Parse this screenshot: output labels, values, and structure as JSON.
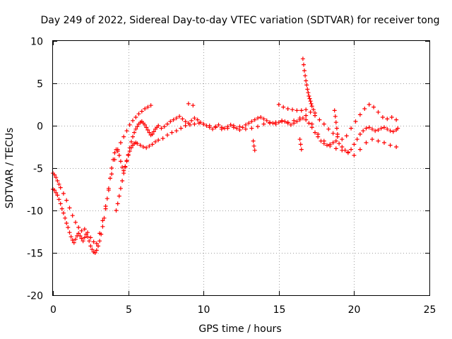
{
  "chart_data": {
    "type": "scatter",
    "title": "Day 249 of 2022, Sidereal Day-to-day VTEC variation (SDTVAR) for receiver tong",
    "xlabel": "GPS time / hours",
    "ylabel": "SDTVAR / TECUs",
    "xlim": [
      0,
      25
    ],
    "ylim": [
      -20,
      10
    ],
    "xticks": [
      0,
      5,
      10,
      15,
      20,
      25
    ],
    "yticks": [
      -20,
      -15,
      -10,
      -5,
      0,
      5,
      10
    ],
    "xtick_labels": [
      "0",
      "5",
      "10",
      "15",
      "20",
      "25"
    ],
    "ytick_labels": [
      "-20",
      "-15",
      "-10",
      "-5",
      "0",
      "5",
      "10"
    ],
    "grid": true,
    "marker": "+",
    "series": [
      {
        "name": "tong",
        "color": "#ff0000",
        "x": [
          0.0,
          0.1,
          0.2,
          0.3,
          0.4,
          0.5,
          0.6,
          0.7,
          0.8,
          0.9,
          1.0,
          1.1,
          1.2,
          1.3,
          1.4,
          1.5,
          1.6,
          1.7,
          1.8,
          1.9,
          2.0,
          2.1,
          2.2,
          2.3,
          2.4,
          2.5,
          2.6,
          2.7,
          2.8,
          2.9,
          3.0,
          3.1,
          3.2,
          3.3,
          3.4,
          3.5,
          3.6,
          3.7,
          3.8,
          3.9,
          4.0,
          4.1,
          4.2,
          4.3,
          4.4,
          4.5,
          4.6,
          4.7,
          4.8,
          4.9,
          5.0,
          5.1,
          5.2,
          5.3,
          5.4,
          5.5,
          5.6,
          5.7,
          5.8,
          5.9,
          6.0,
          6.1,
          6.2,
          6.3,
          6.4,
          6.5,
          6.6,
          6.7,
          6.8,
          6.9,
          7.0,
          7.2,
          7.4,
          7.6,
          7.8,
          8.0,
          8.2,
          8.4,
          8.6,
          8.8,
          9.0,
          9.2,
          9.4,
          9.6,
          9.8,
          10.0,
          10.2,
          10.4,
          10.6,
          10.8,
          11.0,
          11.2,
          11.4,
          11.6,
          11.8,
          12.0,
          12.2,
          12.4,
          12.6,
          12.8,
          13.0,
          13.2,
          13.4,
          13.6,
          13.8,
          14.0,
          14.2,
          14.4,
          14.6,
          14.8,
          15.0,
          15.2,
          15.4,
          15.6,
          15.8,
          16.0,
          16.2,
          16.4,
          16.6,
          16.8,
          17.0,
          17.2,
          17.4,
          17.6,
          17.8,
          18.0,
          18.2,
          18.4,
          18.6,
          18.8,
          19.0,
          19.2,
          19.4,
          19.6,
          19.8,
          20.0,
          20.2,
          20.4,
          20.6,
          20.8,
          21.0,
          21.2,
          21.4,
          21.6,
          21.8,
          22.0,
          22.2,
          22.4,
          22.6,
          22.8,
          22.9,
          0.0,
          0.1,
          0.2,
          0.3,
          0.4,
          0.5,
          0.7,
          0.9,
          1.1,
          1.3,
          1.5,
          1.7,
          1.9,
          2.1,
          2.3,
          2.5,
          2.7,
          2.9,
          3.1,
          3.3,
          3.5,
          3.7,
          3.9,
          4.1,
          4.3,
          4.5,
          4.7,
          4.9,
          5.1,
          5.3,
          5.5,
          5.7,
          5.9,
          6.1,
          6.3,
          6.5,
          4.2,
          4.3,
          4.4,
          4.5,
          4.6,
          4.7,
          4.8,
          4.9,
          5.0,
          5.1,
          5.2,
          5.3,
          5.4,
          5.5,
          5.6,
          5.8,
          6.0,
          6.2,
          6.4,
          6.6,
          6.8,
          7.0,
          7.3,
          7.6,
          7.9,
          8.2,
          8.5,
          8.8,
          9.1,
          9.4,
          9.7,
          10.0,
          10.4,
          10.8,
          11.2,
          11.6,
          12.0,
          12.4,
          12.8,
          13.2,
          13.6,
          14.0,
          14.4,
          14.8,
          15.2,
          15.6,
          16.0,
          16.4,
          16.8,
          17.2,
          17.6,
          18.0,
          18.4,
          18.8,
          19.2,
          19.6,
          20.0,
          20.4,
          20.8,
          21.2,
          21.6,
          22.0,
          22.4,
          22.8,
          15.0,
          15.3,
          15.6,
          15.9,
          16.2,
          16.5,
          16.8,
          17.1,
          17.4,
          17.7,
          18.0,
          18.3,
          18.6,
          18.9,
          19.2,
          19.5,
          19.8,
          20.1,
          20.4,
          20.7,
          21.0,
          21.3,
          21.6,
          21.9,
          22.2,
          22.5,
          22.8,
          16.6,
          16.65,
          16.7,
          16.75,
          16.8,
          16.85,
          16.9,
          16.95,
          17.0,
          17.05,
          17.1,
          17.15,
          17.2,
          17.3,
          17.4,
          18.7,
          18.75,
          18.8,
          18.85,
          18.9,
          16.4,
          16.45,
          16.5,
          13.3,
          13.35,
          13.4,
          9.0,
          9.3
        ],
        "y": [
          -7.5,
          -7.6,
          -7.9,
          -8.2,
          -8.7,
          -9.2,
          -9.8,
          -10.3,
          -10.9,
          -11.5,
          -12.0,
          -12.6,
          -13.1,
          -13.5,
          -13.8,
          -13.4,
          -13.0,
          -12.7,
          -13.0,
          -13.3,
          -13.6,
          -13.2,
          -12.8,
          -13.1,
          -13.6,
          -14.2,
          -14.6,
          -14.9,
          -15.0,
          -14.7,
          -14.2,
          -13.6,
          -12.8,
          -11.9,
          -10.9,
          -9.8,
          -8.6,
          -7.4,
          -6.2,
          -5.0,
          -4.0,
          -3.2,
          -2.8,
          -3.0,
          -3.5,
          -4.2,
          -4.9,
          -5.3,
          -4.9,
          -4.2,
          -3.4,
          -2.6,
          -1.9,
          -1.3,
          -0.8,
          -0.4,
          -0.1,
          0.2,
          0.4,
          0.5,
          0.3,
          0.1,
          -0.2,
          -0.5,
          -0.8,
          -1.1,
          -1.0,
          -0.7,
          -0.4,
          -0.2,
          0.0,
          -0.3,
          -0.1,
          0.2,
          0.5,
          0.7,
          0.9,
          1.1,
          0.8,
          0.5,
          0.3,
          0.6,
          0.9,
          0.7,
          0.4,
          0.2,
          0.0,
          -0.2,
          -0.4,
          -0.1,
          0.1,
          -0.2,
          -0.3,
          -0.1,
          0.1,
          0.0,
          -0.3,
          -0.5,
          -0.2,
          0.1,
          0.3,
          0.5,
          0.7,
          0.9,
          1.0,
          0.8,
          0.6,
          0.4,
          0.3,
          0.2,
          0.4,
          0.6,
          0.5,
          0.3,
          0.1,
          0.3,
          0.5,
          0.7,
          0.9,
          0.7,
          0.3,
          -0.2,
          -0.8,
          -1.3,
          -1.8,
          -2.1,
          -2.3,
          -2.2,
          -2.0,
          -1.8,
          -2.1,
          -2.5,
          -2.9,
          -3.1,
          -2.8,
          -2.2,
          -1.6,
          -1.0,
          -0.6,
          -0.3,
          -0.2,
          -0.4,
          -0.6,
          -0.5,
          -0.3,
          -0.2,
          -0.4,
          -0.6,
          -0.7,
          -0.5,
          -0.3,
          -5.6,
          -5.8,
          -6.1,
          -6.5,
          -6.9,
          -7.3,
          -8.0,
          -8.8,
          -9.7,
          -10.6,
          -11.4,
          -12.0,
          -12.4,
          -12.2,
          -12.6,
          -13.2,
          -13.7,
          -13.9,
          -12.7,
          -11.2,
          -9.5,
          -7.6,
          -5.7,
          -4.0,
          -2.8,
          -2.0,
          -1.3,
          -0.6,
          0.1,
          0.6,
          1.0,
          1.4,
          1.7,
          2.0,
          2.2,
          2.4,
          -10.0,
          -9.2,
          -8.3,
          -7.4,
          -6.5,
          -5.6,
          -4.8,
          -4.1,
          -3.5,
          -3.0,
          -2.6,
          -2.3,
          -2.1,
          -2.0,
          -2.1,
          -2.3,
          -2.5,
          -2.6,
          -2.4,
          -2.2,
          -1.9,
          -1.7,
          -1.5,
          -1.1,
          -0.8,
          -0.6,
          -0.3,
          0.0,
          0.1,
          0.2,
          0.3,
          0.2,
          0.0,
          -0.2,
          -0.4,
          -0.3,
          -0.2,
          -0.1,
          -0.4,
          -0.3,
          -0.1,
          0.2,
          0.3,
          0.4,
          0.5,
          0.4,
          0.6,
          0.9,
          1.2,
          0.2,
          -1.0,
          -1.8,
          -2.4,
          -2.7,
          -2.9,
          -3.2,
          -3.5,
          -2.8,
          -2.0,
          -1.6,
          -1.8,
          -2.0,
          -2.3,
          -2.5,
          2.5,
          2.2,
          2.0,
          1.9,
          1.8,
          1.8,
          1.9,
          1.6,
          1.2,
          0.7,
          0.2,
          -0.4,
          -0.9,
          -1.3,
          -1.6,
          -1.2,
          -0.3,
          0.5,
          1.3,
          2.0,
          2.5,
          2.2,
          1.6,
          1.0,
          0.8,
          1.0,
          0.7,
          7.9,
          7.2,
          6.5,
          5.9,
          5.3,
          4.8,
          4.3,
          3.9,
          3.5,
          3.2,
          2.9,
          2.6,
          2.3,
          1.9,
          1.5,
          1.8,
          1.1,
          0.4,
          -0.3,
          -1.0,
          -1.6,
          -2.2,
          -2.8,
          -1.8,
          -2.4,
          -2.9,
          2.6,
          2.4
        ]
      }
    ]
  }
}
